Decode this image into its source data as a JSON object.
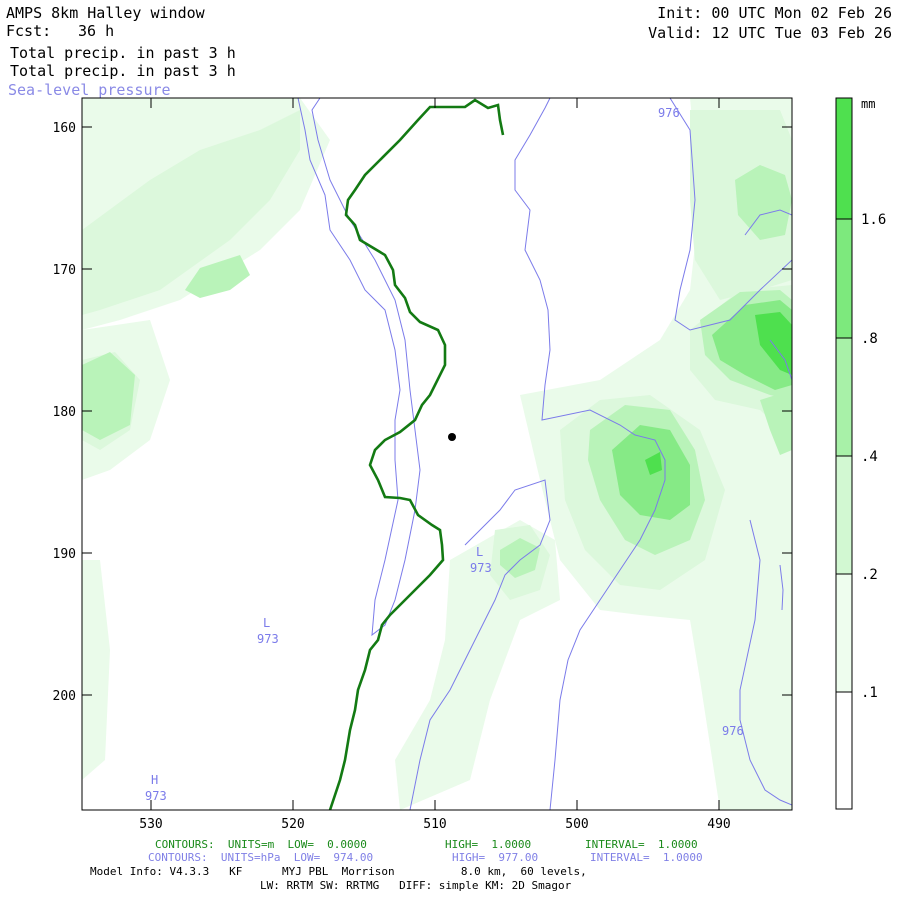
{
  "header": {
    "title": "AMPS 8km Halley window",
    "fcst_label": "Fcst:",
    "fcst_value": "36 h",
    "field1": "Total precip. in past 3 h",
    "field2": "Total precip. in past 3 h",
    "field3": "Sea-level pressure",
    "init": "Init: 00 UTC Mon 02 Feb 26",
    "valid": "Valid: 12 UTC Tue 03 Feb 26"
  },
  "axes": {
    "y_ticks": [
      "160",
      "170",
      "180",
      "190",
      "200"
    ],
    "x_ticks": [
      "530",
      "520",
      "510",
      "500",
      "490"
    ]
  },
  "colorbar": {
    "unit": "mm",
    "labels": [
      ".1",
      ".2",
      ".4",
      ".8",
      "1.6"
    ],
    "colors": [
      "#ffffff",
      "#eefdee",
      "#d2f8d2",
      "#a8f1a8",
      "#7de97d",
      "#4fe04f"
    ]
  },
  "map_labels": {
    "p976_top": "976",
    "p976_right": "976",
    "L1": "L",
    "L1_value": "973",
    "L2": "L",
    "L2_value": "973",
    "H": "H",
    "H_value": "973"
  },
  "colors": {
    "coast": "#137a13",
    "isobar": "#7b7bea",
    "precip_light": "#e8fbe8",
    "precip_mid": "#c8f5c8",
    "precip_high": "#8fec8f",
    "precip_max": "#55e055"
  },
  "footer": {
    "line1_a": "CONTOURS:  UNITS=m  LOW=  0.0000",
    "line1_b": "HIGH=  1.0000",
    "line1_c": "INTERVAL=  1.0000",
    "line2_a": "CONTOURS:  UNITS=hPa  LOW=  974.00",
    "line2_b": "HIGH=  977.00",
    "line2_c": "INTERVAL=  1.0000",
    "line3": "Model Info: V4.3.3   KF      MYJ PBL  Morrison          8.0 km,  60 levels,",
    "line4": "LW: RRTM SW: RRTMG   DIFF: simple KM: 2D Smagor"
  }
}
